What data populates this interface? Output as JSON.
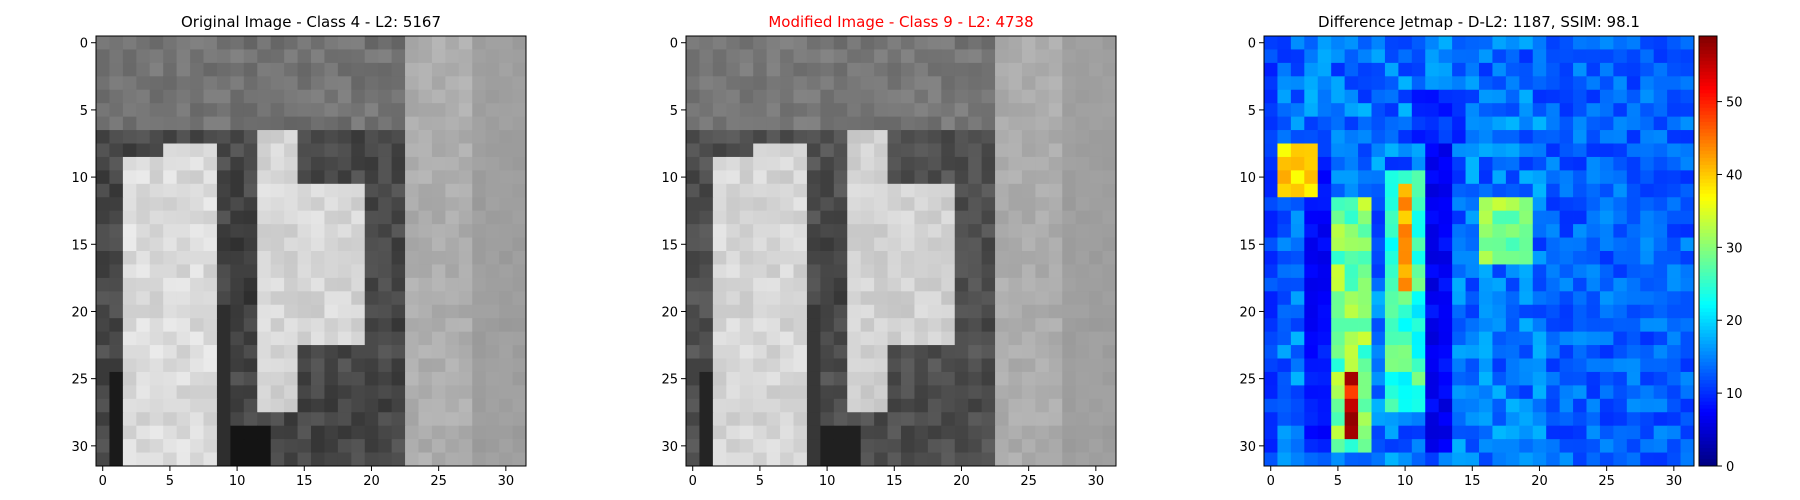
{
  "colors": {
    "title_default": "#000000",
    "title_modified": "#ff0000",
    "axis": "#000000",
    "background": "#ffffff"
  },
  "chart_data": [
    {
      "type": "heatmap",
      "title": "Original Image - Class 4 - L2: 5167",
      "title_color": "#000000",
      "colormap": "gray",
      "grid_size": [
        32,
        32
      ],
      "xlim": [
        -0.5,
        31.5
      ],
      "ylim": [
        31.5,
        -0.5
      ],
      "x_ticks": [
        0,
        5,
        10,
        15,
        20,
        25,
        30
      ],
      "y_ticks": [
        0,
        5,
        10,
        15,
        20,
        25,
        30
      ],
      "grid": false
    },
    {
      "type": "heatmap",
      "title": "Modified Image - Class 9 - L2: 4738",
      "title_color": "#ff0000",
      "colormap": "gray",
      "grid_size": [
        32,
        32
      ],
      "xlim": [
        -0.5,
        31.5
      ],
      "ylim": [
        31.5,
        -0.5
      ],
      "x_ticks": [
        0,
        5,
        10,
        15,
        20,
        25,
        30
      ],
      "y_ticks": [
        0,
        5,
        10,
        15,
        20,
        25,
        30
      ],
      "grid": false
    },
    {
      "type": "heatmap",
      "title": "Difference Jetmap - D-L2: 1187, SSIM: 98.1",
      "title_color": "#000000",
      "colormap": "jet",
      "grid_size": [
        32,
        32
      ],
      "xlim": [
        -0.5,
        31.5
      ],
      "ylim": [
        31.5,
        -0.5
      ],
      "x_ticks": [
        0,
        5,
        10,
        15,
        20,
        25,
        30
      ],
      "y_ticks": [
        0,
        5,
        10,
        15,
        20,
        25,
        30
      ],
      "grid": false,
      "colorbar": {
        "range": [
          0,
          59
        ],
        "ticks": [
          0,
          10,
          20,
          30,
          40,
          50
        ]
      }
    }
  ]
}
